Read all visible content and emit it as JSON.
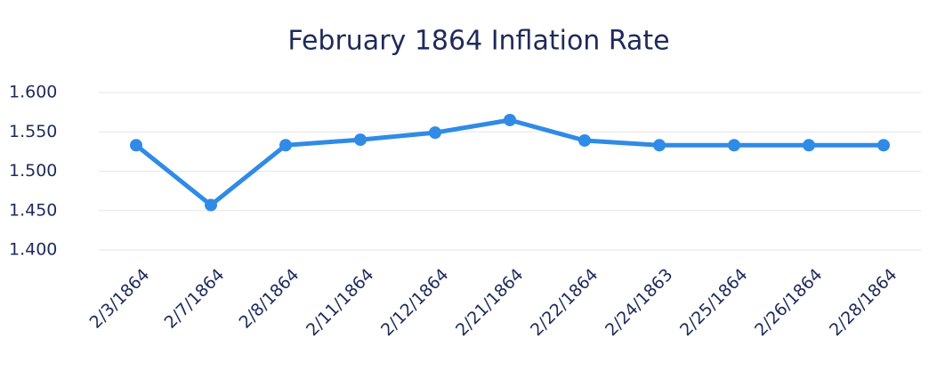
{
  "chart_data": {
    "type": "line",
    "title": "February 1864 Inflation Rate",
    "categories": [
      "2/3/1864",
      "2/7/1864",
      "2/8/1864",
      "2/11/1864",
      "2/12/1864",
      "2/21/1864",
      "2/22/1864",
      "2/24/1863",
      "2/25/1864",
      "2/26/1864",
      "2/28/1864"
    ],
    "series": [
      {
        "name": "Inflation Rate",
        "color": "#2f8be6",
        "values": [
          1.533,
          1.457,
          1.533,
          1.54,
          1.549,
          1.565,
          1.539,
          1.533,
          1.533,
          1.533,
          1.533
        ]
      }
    ],
    "ylim": [
      1.4,
      1.6
    ],
    "yticks": [
      {
        "value": 1.4,
        "label": "1.400"
      },
      {
        "value": 1.45,
        "label": "1.450"
      },
      {
        "value": 1.5,
        "label": "1.500"
      },
      {
        "value": 1.55,
        "label": "1.550"
      },
      {
        "value": 1.6,
        "label": "1.600"
      }
    ],
    "grid": true
  }
}
